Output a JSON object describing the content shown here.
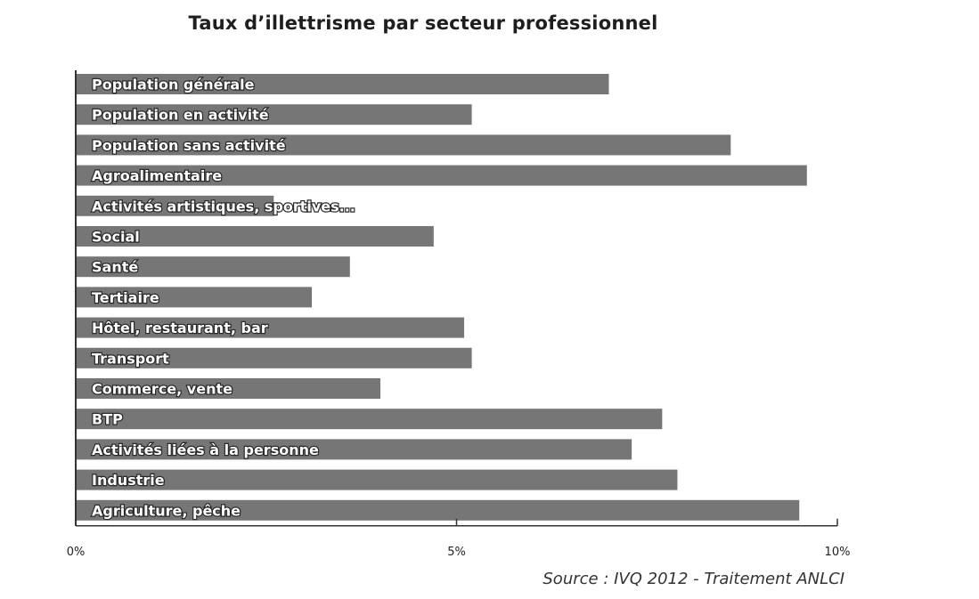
{
  "chart_data": {
    "type": "bar",
    "orientation": "horizontal",
    "title": "Taux d’illettrisme par secteur professionnel",
    "categories": [
      "Population générale",
      "Population en activité",
      "Population sans activité",
      "Agroalimentaire",
      "Activités artistiques, sportives...",
      "Social",
      "Santé",
      "Tertiaire",
      "Hôtel, restaurant, bar",
      "Transport",
      "Commerce, vente",
      "BTP",
      "Activités liées à la personne",
      "Industrie",
      "Agriculture, pêche"
    ],
    "values": [
      7.0,
      5.2,
      8.6,
      9.6,
      2.6,
      4.7,
      3.6,
      3.1,
      5.1,
      5.2,
      4.0,
      7.7,
      7.3,
      7.9,
      9.5
    ],
    "xlim": [
      0,
      10
    ],
    "xticks": [
      "0%",
      "5%",
      "10%"
    ],
    "xlabel": "",
    "ylabel": "",
    "grid": false,
    "bar_color": "#767676",
    "source": "Source : IVQ 2012 - Traitement ANLCI"
  }
}
